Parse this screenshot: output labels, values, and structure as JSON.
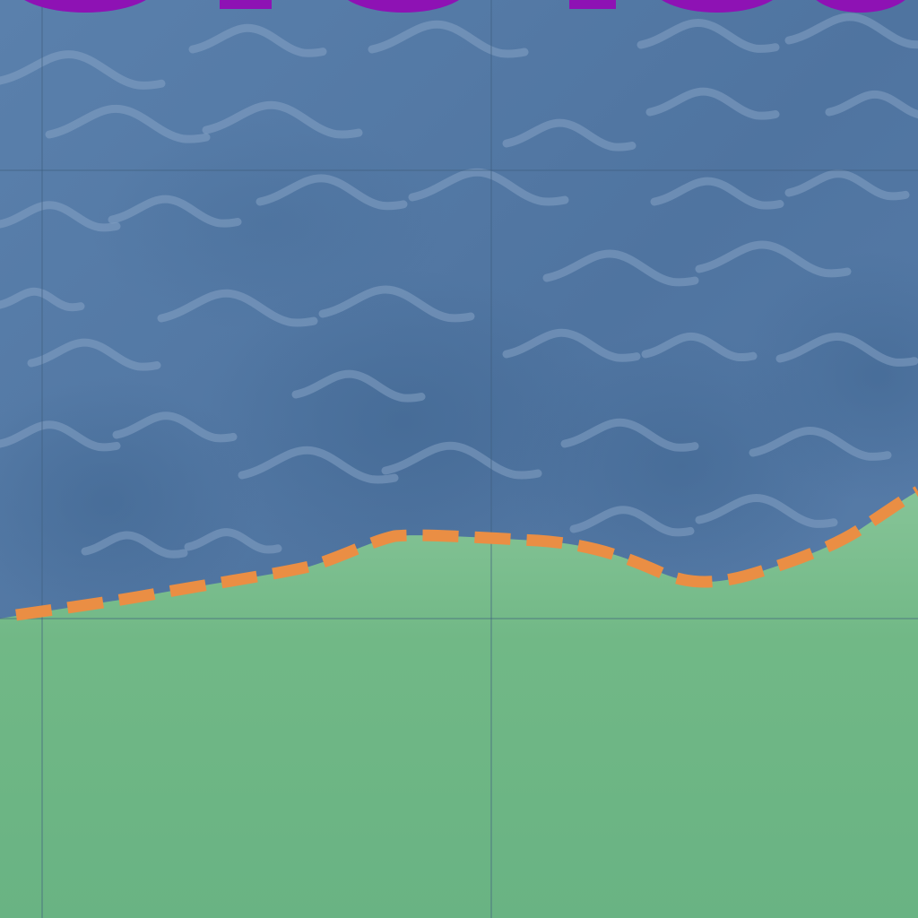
{
  "map": {
    "colors": {
      "water": "#5479a5",
      "water_dark": "#456b96",
      "water_light": "#6286b1",
      "wave": "#8aa6c8",
      "land": "#6db685",
      "land_light": "#84c296",
      "grid": "#3f5f7d",
      "coastline": "#ea8e44",
      "title": "#8e12b4"
    },
    "grid_lines": "visible",
    "coastline_style": "dashed",
    "title_text": "",
    "icons": [
      "wave-icon"
    ]
  }
}
